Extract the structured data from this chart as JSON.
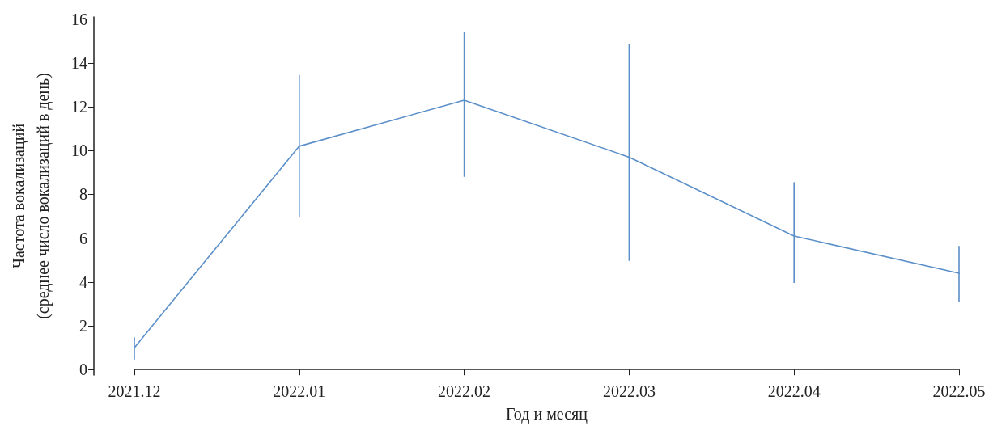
{
  "chart_data": {
    "type": "line",
    "xlabel": "Год и месяц",
    "ylabel": "Частота вокализаций\n(среднее число вокализаций в день)",
    "categories": [
      "2021.12",
      "2022.01",
      "2022.02",
      "2022.03",
      "2022.04",
      "2022.05"
    ],
    "values": [
      1.0,
      10.2,
      12.3,
      9.7,
      6.1,
      4.4
    ],
    "errors": [
      [
        0.46,
        1.48
      ],
      [
        6.96,
        13.45
      ],
      [
        8.8,
        15.4
      ],
      [
        4.96,
        14.87
      ],
      [
        3.96,
        8.55
      ],
      [
        3.08,
        5.65
      ]
    ],
    "color": "#5b8fc9",
    "ylim": [
      -0.25,
      16.1
    ],
    "yticks": [
      0,
      2,
      4,
      6,
      8,
      10,
      12,
      14,
      16
    ],
    "grid": false,
    "marker": "none",
    "line_style": "solid"
  }
}
